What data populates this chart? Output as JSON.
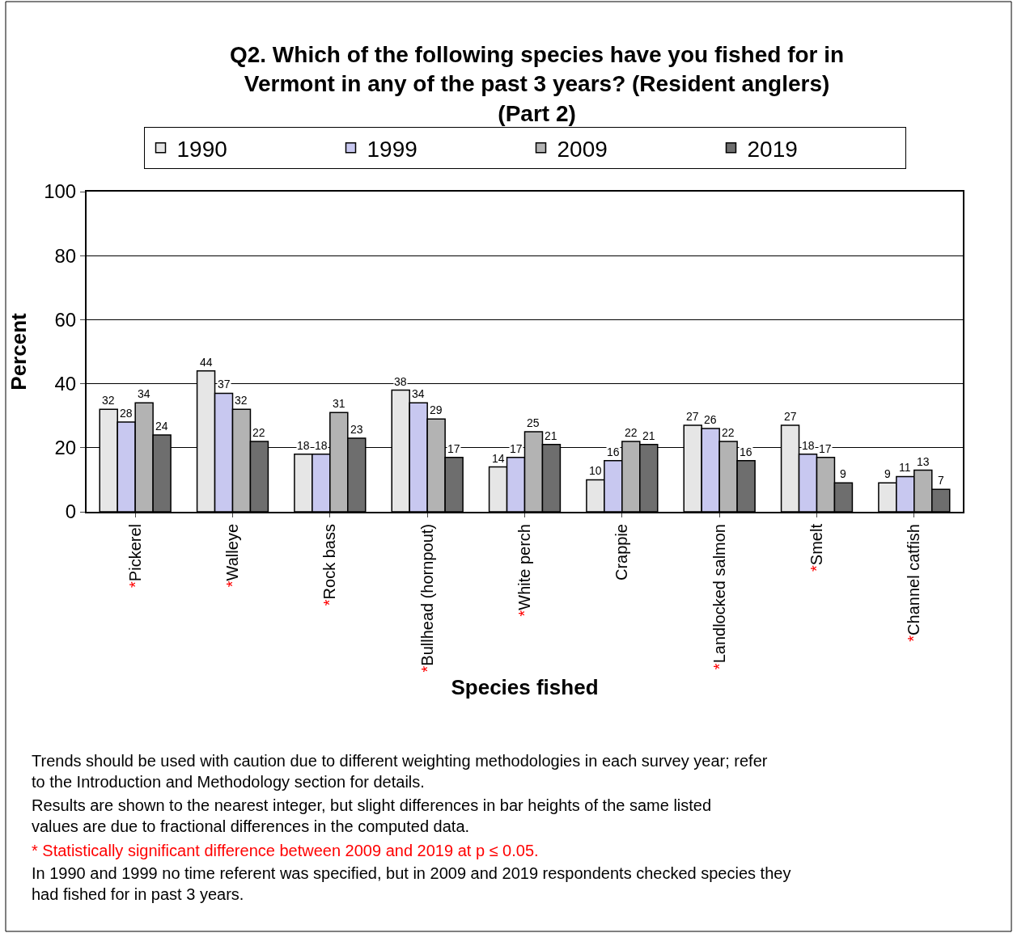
{
  "chart_data": {
    "type": "bar",
    "title": "Q2. Which of the following species have you fished for in Vermont in any of the past 3 years? (Resident anglers) (Part 2)",
    "xlabel": "Species fished",
    "ylabel": "Percent",
    "categories": [
      "*Pickerel",
      "*Walleye",
      "*Rock bass",
      "*Bullhead (hornpout)",
      "*White perch",
      "Crappie",
      "*Landlocked salmon",
      "*Smelt",
      "*Channel catfish"
    ],
    "series": [
      {
        "name": "1990",
        "color": "#e6e6e6",
        "values": [
          32,
          44,
          18,
          38,
          14,
          10,
          27,
          27,
          9
        ]
      },
      {
        "name": "1999",
        "color": "#c8c8f0",
        "values": [
          28,
          37,
          18,
          34,
          17,
          16,
          26,
          18,
          11
        ]
      },
      {
        "name": "2009",
        "color": "#b3b3b3",
        "values": [
          34,
          32,
          31,
          29,
          25,
          22,
          22,
          17,
          13
        ]
      },
      {
        "name": "2019",
        "color": "#6e6e6e",
        "values": [
          24,
          22,
          23,
          17,
          21,
          21,
          16,
          9,
          7
        ]
      }
    ],
    "ylim": [
      0,
      100
    ],
    "yticks": [
      0,
      20,
      40,
      60,
      80,
      100
    ],
    "grid": "y",
    "legend": "top",
    "data_labels": true,
    "annotations": [
      "Trends should be used with caution due to different weighting methodologies in each survey year; refer to the Introduction and Methodology section for details.",
      "Results are shown to the nearest integer, but slight differences in bar heights of the same listed values are due to fractional differences in the computed data.",
      "* Statistically significant difference between 2009 and 2019 at p ≤ 0.05.",
      "In 1990 and 1999 no time referent was specified, but in 2009 and 2019 respondents checked species they had fished for in past 3 years."
    ]
  }
}
